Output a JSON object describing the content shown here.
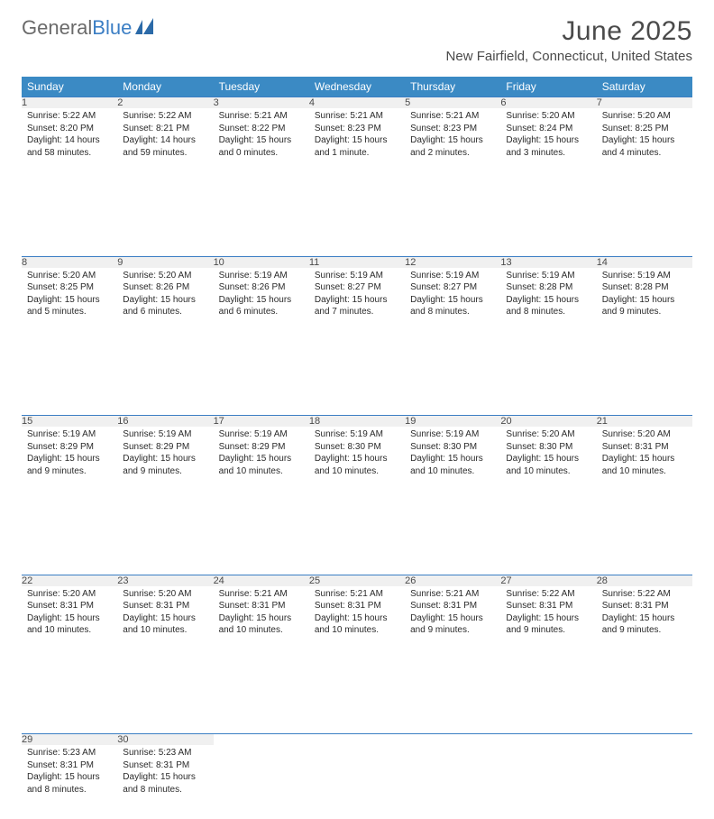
{
  "logo": {
    "text_general": "General",
    "text_blue": "Blue"
  },
  "title": "June 2025",
  "location": "New Fairfield, Connecticut, United States",
  "colors": {
    "brand_blue": "#3b8ac4",
    "rule_blue": "#3b7ec4",
    "header_text": "#ffffff",
    "daynum_bg": "#f0f0f0",
    "body_text": "#2a2a2a",
    "title_text": "#4a4a4a",
    "background": "#ffffff"
  },
  "weekdays": [
    "Sunday",
    "Monday",
    "Tuesday",
    "Wednesday",
    "Thursday",
    "Friday",
    "Saturday"
  ],
  "weeks": [
    [
      {
        "d": "1",
        "sr": "5:22 AM",
        "ss": "8:20 PM",
        "dl": "14 hours and 58 minutes."
      },
      {
        "d": "2",
        "sr": "5:22 AM",
        "ss": "8:21 PM",
        "dl": "14 hours and 59 minutes."
      },
      {
        "d": "3",
        "sr": "5:21 AM",
        "ss": "8:22 PM",
        "dl": "15 hours and 0 minutes."
      },
      {
        "d": "4",
        "sr": "5:21 AM",
        "ss": "8:23 PM",
        "dl": "15 hours and 1 minute."
      },
      {
        "d": "5",
        "sr": "5:21 AM",
        "ss": "8:23 PM",
        "dl": "15 hours and 2 minutes."
      },
      {
        "d": "6",
        "sr": "5:20 AM",
        "ss": "8:24 PM",
        "dl": "15 hours and 3 minutes."
      },
      {
        "d": "7",
        "sr": "5:20 AM",
        "ss": "8:25 PM",
        "dl": "15 hours and 4 minutes."
      }
    ],
    [
      {
        "d": "8",
        "sr": "5:20 AM",
        "ss": "8:25 PM",
        "dl": "15 hours and 5 minutes."
      },
      {
        "d": "9",
        "sr": "5:20 AM",
        "ss": "8:26 PM",
        "dl": "15 hours and 6 minutes."
      },
      {
        "d": "10",
        "sr": "5:19 AM",
        "ss": "8:26 PM",
        "dl": "15 hours and 6 minutes."
      },
      {
        "d": "11",
        "sr": "5:19 AM",
        "ss": "8:27 PM",
        "dl": "15 hours and 7 minutes."
      },
      {
        "d": "12",
        "sr": "5:19 AM",
        "ss": "8:27 PM",
        "dl": "15 hours and 8 minutes."
      },
      {
        "d": "13",
        "sr": "5:19 AM",
        "ss": "8:28 PM",
        "dl": "15 hours and 8 minutes."
      },
      {
        "d": "14",
        "sr": "5:19 AM",
        "ss": "8:28 PM",
        "dl": "15 hours and 9 minutes."
      }
    ],
    [
      {
        "d": "15",
        "sr": "5:19 AM",
        "ss": "8:29 PM",
        "dl": "15 hours and 9 minutes."
      },
      {
        "d": "16",
        "sr": "5:19 AM",
        "ss": "8:29 PM",
        "dl": "15 hours and 9 minutes."
      },
      {
        "d": "17",
        "sr": "5:19 AM",
        "ss": "8:29 PM",
        "dl": "15 hours and 10 minutes."
      },
      {
        "d": "18",
        "sr": "5:19 AM",
        "ss": "8:30 PM",
        "dl": "15 hours and 10 minutes."
      },
      {
        "d": "19",
        "sr": "5:19 AM",
        "ss": "8:30 PM",
        "dl": "15 hours and 10 minutes."
      },
      {
        "d": "20",
        "sr": "5:20 AM",
        "ss": "8:30 PM",
        "dl": "15 hours and 10 minutes."
      },
      {
        "d": "21",
        "sr": "5:20 AM",
        "ss": "8:31 PM",
        "dl": "15 hours and 10 minutes."
      }
    ],
    [
      {
        "d": "22",
        "sr": "5:20 AM",
        "ss": "8:31 PM",
        "dl": "15 hours and 10 minutes."
      },
      {
        "d": "23",
        "sr": "5:20 AM",
        "ss": "8:31 PM",
        "dl": "15 hours and 10 minutes."
      },
      {
        "d": "24",
        "sr": "5:21 AM",
        "ss": "8:31 PM",
        "dl": "15 hours and 10 minutes."
      },
      {
        "d": "25",
        "sr": "5:21 AM",
        "ss": "8:31 PM",
        "dl": "15 hours and 10 minutes."
      },
      {
        "d": "26",
        "sr": "5:21 AM",
        "ss": "8:31 PM",
        "dl": "15 hours and 9 minutes."
      },
      {
        "d": "27",
        "sr": "5:22 AM",
        "ss": "8:31 PM",
        "dl": "15 hours and 9 minutes."
      },
      {
        "d": "28",
        "sr": "5:22 AM",
        "ss": "8:31 PM",
        "dl": "15 hours and 9 minutes."
      }
    ],
    [
      {
        "d": "29",
        "sr": "5:23 AM",
        "ss": "8:31 PM",
        "dl": "15 hours and 8 minutes."
      },
      {
        "d": "30",
        "sr": "5:23 AM",
        "ss": "8:31 PM",
        "dl": "15 hours and 8 minutes."
      },
      null,
      null,
      null,
      null,
      null
    ]
  ],
  "labels": {
    "sunrise": "Sunrise:",
    "sunset": "Sunset:",
    "daylight": "Daylight:"
  }
}
